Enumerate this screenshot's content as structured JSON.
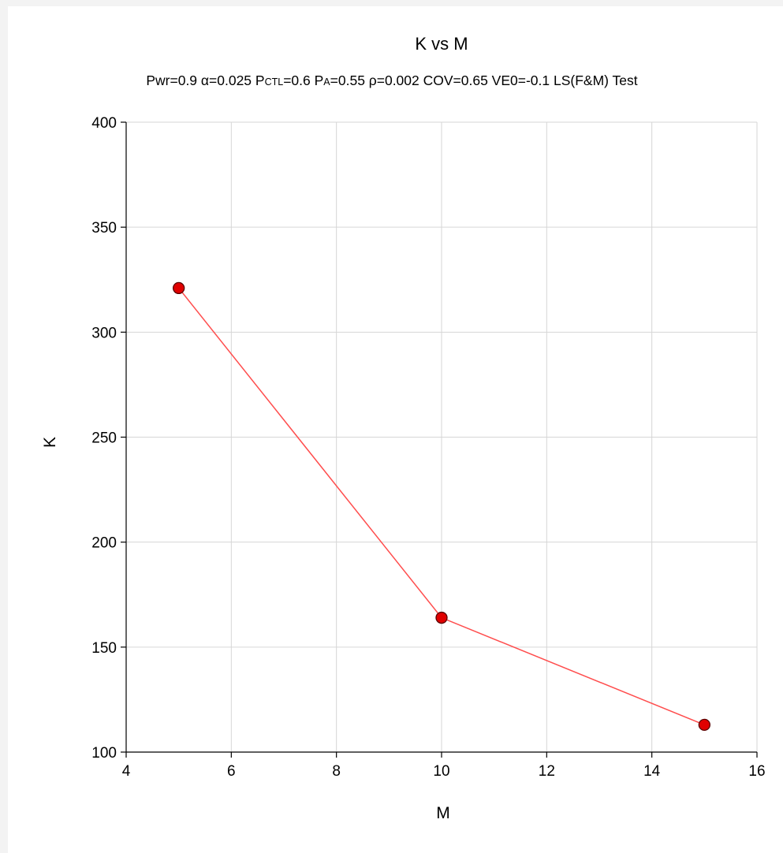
{
  "chart_data": {
    "type": "line",
    "title": "K vs M",
    "subtitle_parts": [
      {
        "text": "Pwr=0.9 α=0.025 P"
      },
      {
        "text": "CTL",
        "small": true
      },
      {
        "text": "=0.6 P"
      },
      {
        "text": "A",
        "small": true
      },
      {
        "text": "=0.55 ρ=0.002 COV=0.65 VE0=-0.1 LS(F&M) Test"
      }
    ],
    "xlabel": "M",
    "ylabel": "K",
    "xlim": [
      4,
      16
    ],
    "ylim": [
      100,
      400
    ],
    "xticks": [
      4,
      6,
      8,
      10,
      12,
      14,
      16
    ],
    "yticks": [
      100,
      150,
      200,
      250,
      300,
      350,
      400
    ],
    "grid": true,
    "series": [
      {
        "x": [
          5,
          10,
          15
        ],
        "y": [
          321,
          164,
          113
        ],
        "line_color": "#ff4d4d",
        "marker_color": "#e00000",
        "marker_edge": "#5a0000"
      }
    ]
  }
}
